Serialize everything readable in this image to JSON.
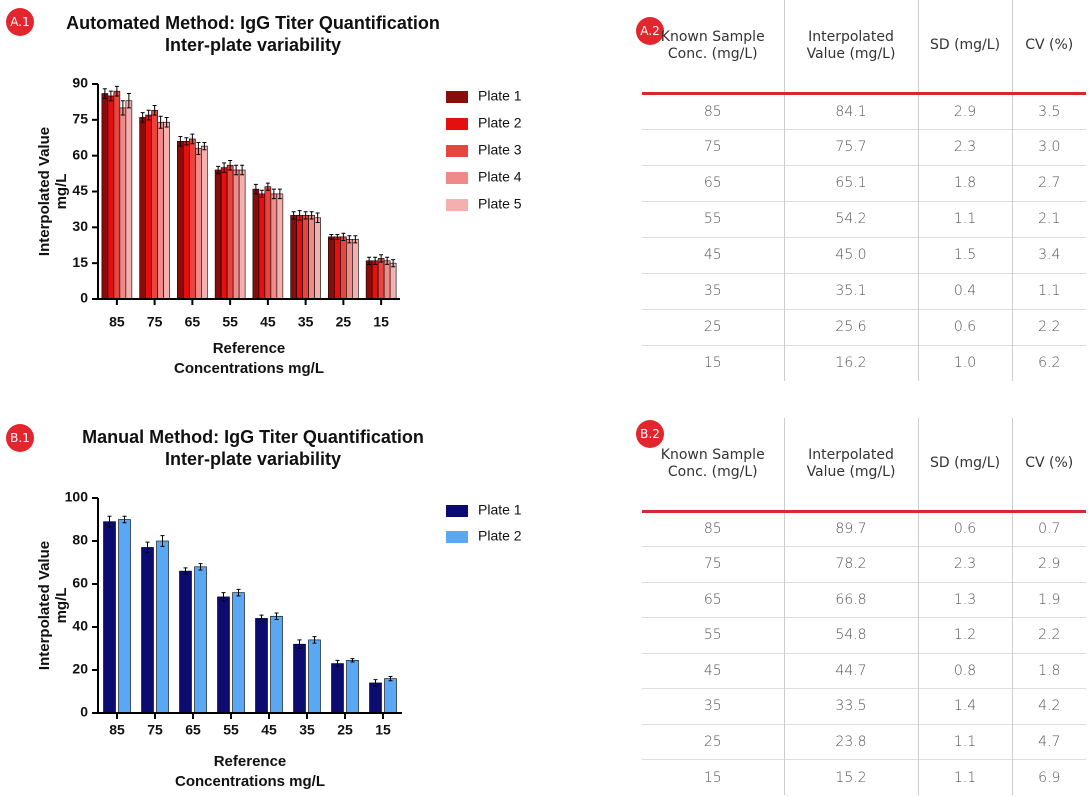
{
  "chart_data": [
    {
      "type": "bar",
      "panel_label": "A.1",
      "title": "Automated Method: IgG Titer Quantification",
      "subtitle": "Inter-plate variability",
      "ylabel": [
        "Interpolated Value",
        "mg/L"
      ],
      "xlabel": [
        "Reference",
        "Concentrations mg/L"
      ],
      "categories": [
        "85",
        "75",
        "65",
        "55",
        "45",
        "35",
        "25",
        "15"
      ],
      "ylim": [
        0,
        90
      ],
      "yticks": [
        0,
        15,
        30,
        45,
        60,
        75,
        90
      ],
      "series": [
        {
          "name": "Plate 1",
          "color": "#8b0a0a",
          "values": [
            86,
            76,
            66,
            54,
            46,
            35,
            26,
            16
          ],
          "errors": [
            2,
            2,
            2,
            1.5,
            2,
            1.5,
            1,
            1.5
          ]
        },
        {
          "name": "Plate 2",
          "color": "#e4100f",
          "values": [
            85,
            77,
            66,
            55,
            44,
            35,
            26,
            16
          ],
          "errors": [
            2,
            2,
            1.5,
            2,
            1.5,
            2,
            1,
            1.5
          ]
        },
        {
          "name": "Plate 3",
          "color": "#e84540",
          "values": [
            87,
            79,
            67,
            56,
            47,
            35,
            26,
            17
          ],
          "errors": [
            2,
            2,
            2,
            2,
            1.5,
            1.5,
            1.5,
            1.5
          ]
        },
        {
          "name": "Plate 4",
          "color": "#ef8a88",
          "values": [
            80,
            74,
            63,
            54,
            44,
            35,
            25,
            16
          ],
          "errors": [
            3,
            2.5,
            2.5,
            2,
            2,
            1.5,
            1.5,
            1.5
          ]
        },
        {
          "name": "Plate 5",
          "color": "#f4b0ae",
          "values": [
            83,
            74,
            64,
            54,
            44,
            34,
            25,
            15
          ],
          "errors": [
            3,
            2,
            1.5,
            2,
            2,
            2,
            1.5,
            1.5
          ]
        }
      ]
    },
    {
      "type": "bar",
      "panel_label": "B.1",
      "title": "Manual Method: IgG Titer Quantification",
      "subtitle": "Inter-plate variability",
      "ylabel": [
        "Interpolated Value",
        "mg/L"
      ],
      "xlabel": [
        "Reference",
        "Concentrations mg/L"
      ],
      "categories": [
        "85",
        "75",
        "65",
        "55",
        "45",
        "35",
        "25",
        "15"
      ],
      "ylim": [
        0,
        100
      ],
      "yticks": [
        0,
        20,
        40,
        60,
        80,
        100
      ],
      "series": [
        {
          "name": "Plate 1",
          "color": "#0c0c70",
          "values": [
            89,
            77,
            66,
            54,
            44,
            32,
            23,
            14
          ],
          "errors": [
            2.5,
            2.5,
            1.5,
            2,
            1.5,
            2,
            1.5,
            1.5
          ]
        },
        {
          "name": "Plate 2",
          "color": "#5aa8f4",
          "values": [
            90,
            80,
            68,
            56,
            45,
            34,
            24.5,
            16
          ],
          "errors": [
            1.5,
            2.5,
            1.5,
            1.5,
            1.5,
            1.5,
            0.8,
            1
          ]
        }
      ]
    }
  ],
  "tables": [
    {
      "panel_label": "A.2",
      "columns": [
        "Known Sample Conc. (mg/L)",
        "Interpolated Value (mg/L)",
        "SD (mg/L)",
        "CV (%)"
      ],
      "rows": [
        [
          "85",
          "84.1",
          "2.9",
          "3.5"
        ],
        [
          "75",
          "75.7",
          "2.3",
          "3.0"
        ],
        [
          "65",
          "65.1",
          "1.8",
          "2.7"
        ],
        [
          "55",
          "54.2",
          "1.1",
          "2.1"
        ],
        [
          "45",
          "45.0",
          "1.5",
          "3.4"
        ],
        [
          "35",
          "35.1",
          "0.4",
          "1.1"
        ],
        [
          "25",
          "25.6",
          "0.6",
          "2.2"
        ],
        [
          "15",
          "16.2",
          "1.0",
          "6.2"
        ]
      ]
    },
    {
      "panel_label": "B.2",
      "columns": [
        "Known Sample Conc. (mg/L)",
        "Interpolated Value (mg/L)",
        "SD (mg/L)",
        "CV (%)"
      ],
      "rows": [
        [
          "85",
          "89.7",
          "0.6",
          "0.7"
        ],
        [
          "75",
          "78.2",
          "2.3",
          "2.9"
        ],
        [
          "65",
          "66.8",
          "1.3",
          "1.9"
        ],
        [
          "55",
          "54.8",
          "1.2",
          "2.2"
        ],
        [
          "45",
          "44.7",
          "0.8",
          "1.8"
        ],
        [
          "35",
          "33.5",
          "1.4",
          "4.2"
        ],
        [
          "25",
          "23.8",
          "1.1",
          "4.7"
        ],
        [
          "15",
          "15.2",
          "1.1",
          "6.9"
        ]
      ]
    }
  ]
}
